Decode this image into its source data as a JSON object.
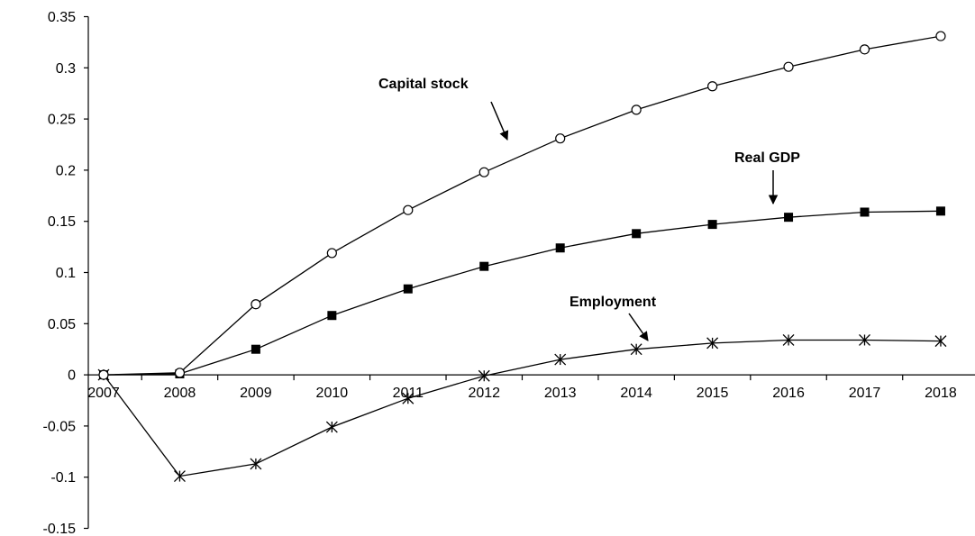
{
  "chart_data": {
    "type": "line",
    "title": "",
    "xlabel": "",
    "ylabel": "",
    "x": [
      "2007",
      "2008",
      "2009",
      "2010",
      "2011",
      "2012",
      "2013",
      "2014",
      "2015",
      "2016",
      "2017",
      "2018"
    ],
    "ylim": [
      -0.15,
      0.35
    ],
    "yticks": [
      -0.15,
      -0.1,
      -0.05,
      0,
      0.05,
      0.1,
      0.15,
      0.2,
      0.25,
      0.3,
      0.35
    ],
    "ytick_labels": [
      "-0.15",
      "-0.1",
      "-0.05",
      "0",
      "0.05",
      "0.1",
      "0.15",
      "0.2",
      "0.25",
      "0.3",
      "0.35"
    ],
    "grid": false,
    "legend": "none",
    "series": [
      {
        "name": "Capital stock",
        "marker": "open-circle",
        "color": "#000000",
        "values": [
          0,
          0.002,
          0.069,
          0.119,
          0.161,
          0.198,
          0.231,
          0.259,
          0.282,
          0.301,
          0.318,
          0.331
        ]
      },
      {
        "name": "Real GDP",
        "marker": "filled-square",
        "color": "#000000",
        "values": [
          0,
          0.001,
          0.025,
          0.058,
          0.084,
          0.106,
          0.124,
          0.138,
          0.147,
          0.154,
          0.159,
          0.16
        ]
      },
      {
        "name": "Employment",
        "marker": "asterisk",
        "color": "#000000",
        "values": [
          0,
          -0.099,
          -0.087,
          -0.051,
          -0.023,
          -0.001,
          0.015,
          0.025,
          0.031,
          0.034,
          0.034,
          0.033
        ]
      }
    ],
    "annotations": [
      {
        "text": "Capital stock",
        "series": "Capital stock"
      },
      {
        "text": "Real GDP",
        "series": "Real GDP"
      },
      {
        "text": "Employment",
        "series": "Employment"
      }
    ]
  }
}
